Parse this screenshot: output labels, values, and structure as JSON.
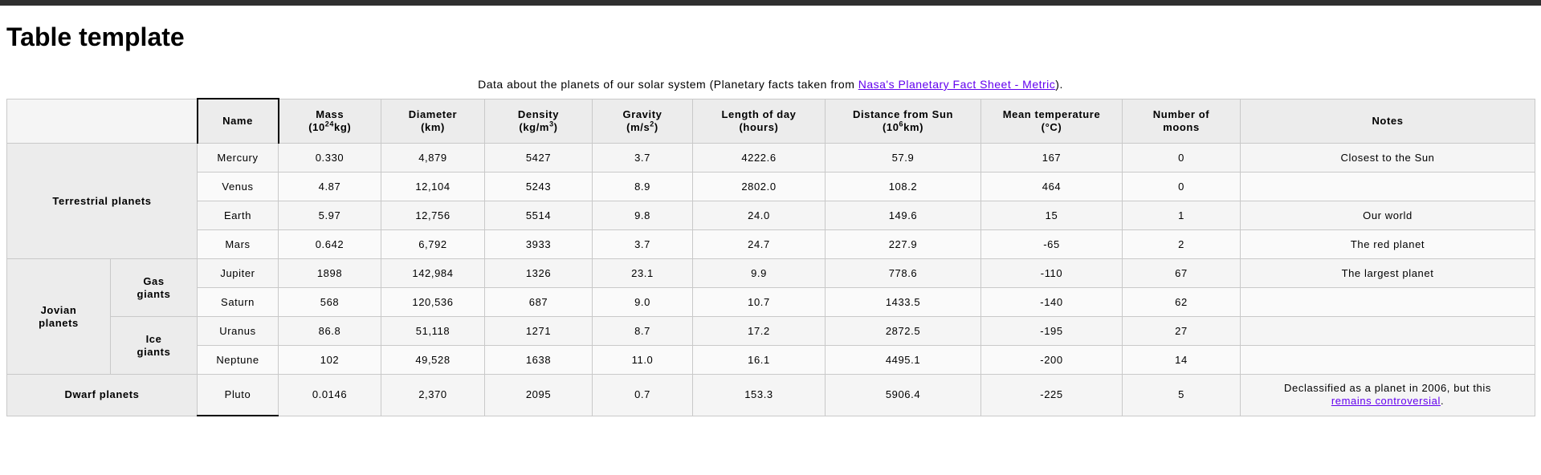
{
  "page": {
    "title": "Table template"
  },
  "caption": {
    "prefix": "Data about the planets of our solar system (Planetary facts taken from ",
    "link_text": "Nasa's Planetary Fact Sheet - Metric",
    "suffix": ")."
  },
  "headers": {
    "name": "Name",
    "mass_a": "Mass",
    "mass_b1": "(10",
    "mass_sup": "24",
    "mass_b2": "kg)",
    "diameter_a": "Diameter",
    "diameter_b": "(km)",
    "density_a": "Density",
    "density_b1": "(kg/m",
    "density_sup": "3",
    "density_b2": ")",
    "gravity_a": "Gravity",
    "gravity_b1": "(m/s",
    "gravity_sup": "2",
    "gravity_b2": ")",
    "day_a": "Length of day",
    "day_b": "(hours)",
    "distance_a": "Distance from Sun",
    "distance_b1": "(10",
    "distance_sup": "6",
    "distance_b2": "km)",
    "temp_a": "Mean temperature",
    "temp_b": "(°C)",
    "moons_a": "Number of",
    "moons_b": "moons",
    "notes": "Notes"
  },
  "groups": {
    "terrestrial": "Terrestrial planets",
    "jovian_a": "Jovian",
    "jovian_b": "planets",
    "gas_a": "Gas",
    "gas_b": "giants",
    "ice_a": "Ice",
    "ice_b": "giants",
    "dwarf": "Dwarf planets"
  },
  "rows": [
    {
      "name": "Mercury",
      "mass": "0.330",
      "diameter": "4,879",
      "density": "5427",
      "gravity": "3.7",
      "day": "4222.6",
      "distance": "57.9",
      "temp": "167",
      "moons": "0",
      "notes": "Closest to the Sun"
    },
    {
      "name": "Venus",
      "mass": "4.87",
      "diameter": "12,104",
      "density": "5243",
      "gravity": "8.9",
      "day": "2802.0",
      "distance": "108.2",
      "temp": "464",
      "moons": "0",
      "notes": ""
    },
    {
      "name": "Earth",
      "mass": "5.97",
      "diameter": "12,756",
      "density": "5514",
      "gravity": "9.8",
      "day": "24.0",
      "distance": "149.6",
      "temp": "15",
      "moons": "1",
      "notes": "Our world"
    },
    {
      "name": "Mars",
      "mass": "0.642",
      "diameter": "6,792",
      "density": "3933",
      "gravity": "3.7",
      "day": "24.7",
      "distance": "227.9",
      "temp": "-65",
      "moons": "2",
      "notes": "The red planet"
    },
    {
      "name": "Jupiter",
      "mass": "1898",
      "diameter": "142,984",
      "density": "1326",
      "gravity": "23.1",
      "day": "9.9",
      "distance": "778.6",
      "temp": "-110",
      "moons": "67",
      "notes": "The largest planet"
    },
    {
      "name": "Saturn",
      "mass": "568",
      "diameter": "120,536",
      "density": "687",
      "gravity": "9.0",
      "day": "10.7",
      "distance": "1433.5",
      "temp": "-140",
      "moons": "62",
      "notes": ""
    },
    {
      "name": "Uranus",
      "mass": "86.8",
      "diameter": "51,118",
      "density": "1271",
      "gravity": "8.7",
      "day": "17.2",
      "distance": "2872.5",
      "temp": "-195",
      "moons": "27",
      "notes": ""
    },
    {
      "name": "Neptune",
      "mass": "102",
      "diameter": "49,528",
      "density": "1638",
      "gravity": "11.0",
      "day": "16.1",
      "distance": "4495.1",
      "temp": "-200",
      "moons": "14",
      "notes": ""
    },
    {
      "name": "Pluto",
      "mass": "0.0146",
      "diameter": "2,370",
      "density": "2095",
      "gravity": "0.7",
      "day": "153.3",
      "distance": "5906.4",
      "temp": "-225",
      "moons": "5",
      "notes": "Declassified as a planet in 2006, but this"
    }
  ],
  "pluto_note": {
    "link_text": "remains controversial",
    "suffix": "."
  },
  "colors": {
    "link": "#6200ee",
    "header_bg": "#ececec",
    "row_odd": "#f5f5f5",
    "row_even": "#fafafa"
  }
}
